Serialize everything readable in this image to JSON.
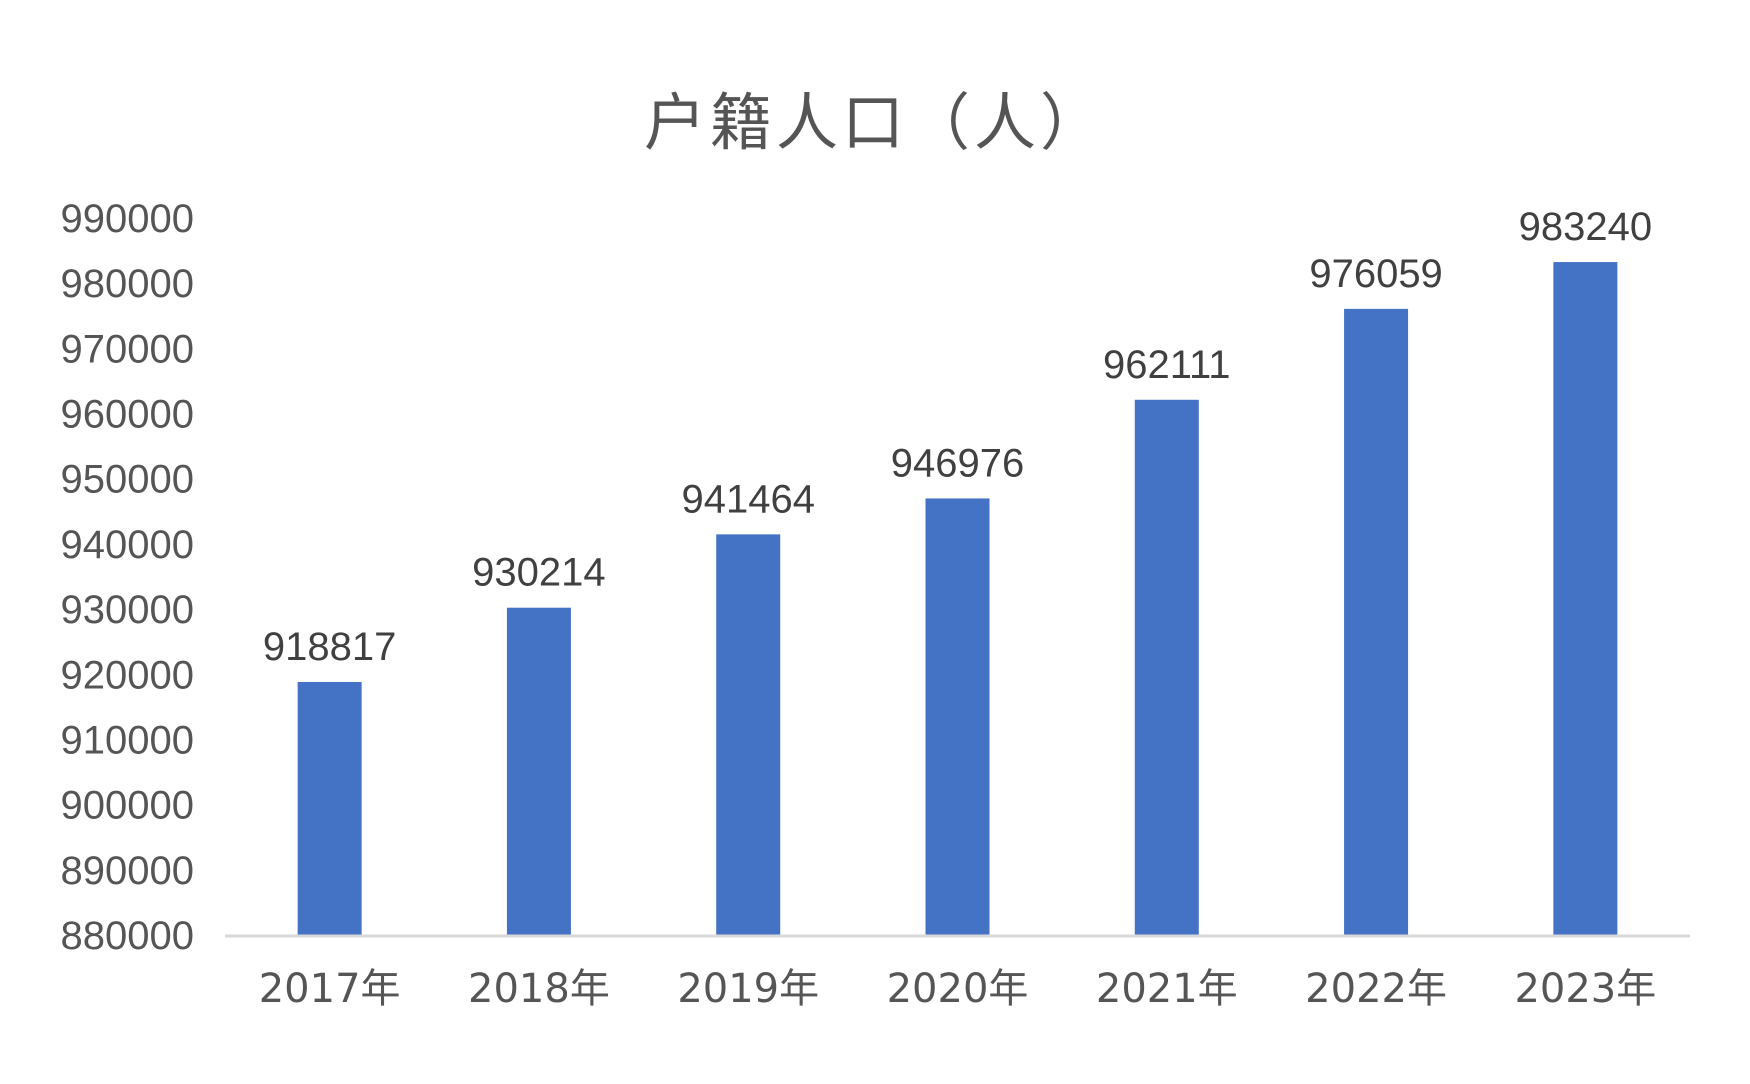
{
  "chart_data": {
    "type": "bar",
    "title": "户籍人口（人）",
    "xlabel": "",
    "ylabel": "",
    "categories": [
      "2017年",
      "2018年",
      "2019年",
      "2020年",
      "2021年",
      "2022年",
      "2023年"
    ],
    "values": [
      918817,
      930214,
      941464,
      946976,
      962111,
      976059,
      983240
    ],
    "ylim": [
      880000,
      990000
    ],
    "yticks": [
      "990000",
      "980000",
      "970000",
      "960000",
      "950000",
      "940000",
      "930000",
      "920000",
      "910000",
      "900000",
      "890000",
      "880000"
    ],
    "data_labels": [
      "918817",
      "930214",
      "941464",
      "946976",
      "962111",
      "976059",
      "983240"
    ],
    "bar_color": "#4472C4",
    "axis_color": "#d9d9d9",
    "grid": false,
    "legend": "none"
  }
}
